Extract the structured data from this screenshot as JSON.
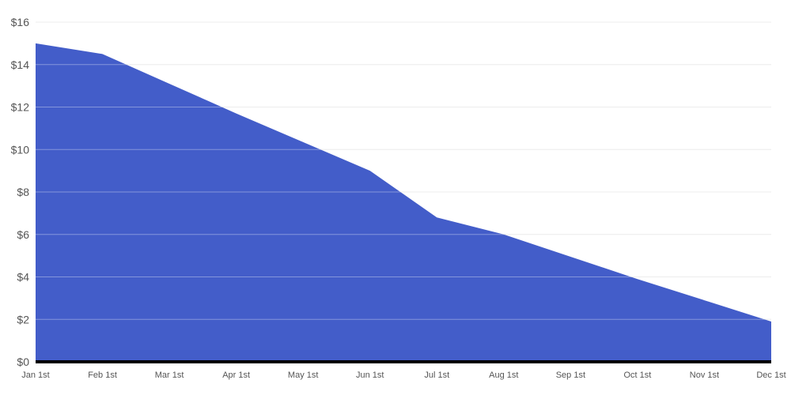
{
  "chart_data": {
    "type": "area",
    "title": "",
    "xlabel": "",
    "ylabel": "",
    "categories": [
      "Jan 1st",
      "Feb 1st",
      "Mar 1st",
      "Apr 1st",
      "May 1st",
      "Jun 1st",
      "Jul 1st",
      "Aug 1st",
      "Sep 1st",
      "Oct 1st",
      "Nov 1st",
      "Dec 1st"
    ],
    "values": [
      15,
      14.5,
      13.1,
      11.7,
      10.35,
      9,
      6.8,
      6,
      4.95,
      3.9,
      2.9,
      1.9
    ],
    "ylim": [
      0,
      16
    ],
    "yticks": [
      0,
      2,
      4,
      6,
      8,
      10,
      12,
      14,
      16
    ],
    "ytick_labels": [
      "$0",
      "$2",
      "$4",
      "$6",
      "$8",
      "$10",
      "$12",
      "$14",
      "$16"
    ],
    "grid": true,
    "legend": "none",
    "colors": {
      "area": "#435dc9",
      "baseline": "#000000",
      "grid": "#e3e3e3",
      "label": "#555555"
    }
  }
}
